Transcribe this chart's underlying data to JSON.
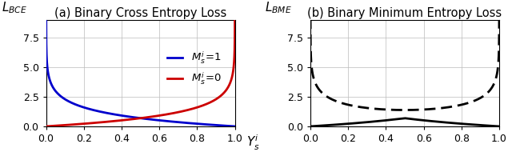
{
  "title_left": "(a) Binary Cross Entropy Loss",
  "title_right": "(b) Binary Minimum Entropy Loss",
  "ylabel_left": "$L_{BCE}$",
  "ylabel_right": "$L_{BME}$",
  "xlabel": "$Y_s^i$",
  "legend_label_1": "$M_s^i\\!=\\!1$",
  "legend_label_0": "$M_s^i\\!=\\!0$",
  "color_1": "#0000cc",
  "color_0": "#cc0000",
  "color_bme": "#000000",
  "ylim": [
    0.0,
    9.0
  ],
  "xlim": [
    0.0,
    1.0
  ],
  "yticks": [
    0.0,
    2.5,
    5.0,
    7.5
  ],
  "xticks": [
    0.0,
    0.2,
    0.4,
    0.6,
    0.8,
    1.0
  ],
  "eps": 0.0001,
  "line_width": 2.0,
  "title_fontsize": 10.5,
  "label_fontsize": 11,
  "tick_fontsize": 9,
  "legend_fontsize": 9.5
}
